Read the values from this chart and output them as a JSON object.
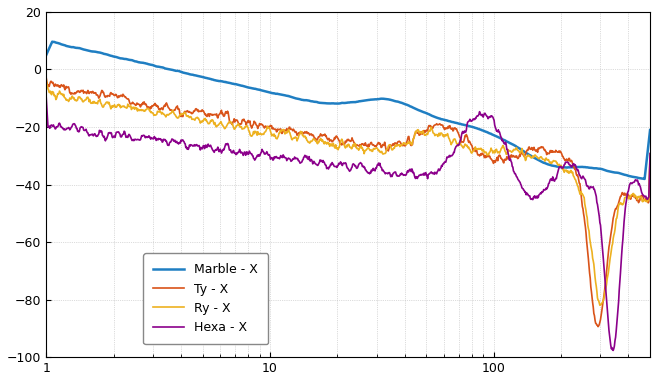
{
  "title": "",
  "xlabel": "",
  "ylabel": "",
  "legend": [
    "Marble - X",
    "Ty - X",
    "Ry - X",
    "Hexa - X"
  ],
  "colors": [
    "#1f7ec2",
    "#d95319",
    "#edb120",
    "#8B008B"
  ],
  "linewidths": [
    1.8,
    1.2,
    1.2,
    1.2
  ],
  "xlim": [
    1,
    500
  ],
  "ylim": [
    -100,
    20
  ],
  "background_color": "#ffffff",
  "axes_bg": "#ffffff",
  "grid_color": "#bbbbbb",
  "tick_color": "#000000",
  "label_color": "#000000",
  "legend_bg": "#ffffff",
  "legend_edge": "#888888",
  "figsize": [
    6.57,
    3.82
  ],
  "dpi": 100
}
